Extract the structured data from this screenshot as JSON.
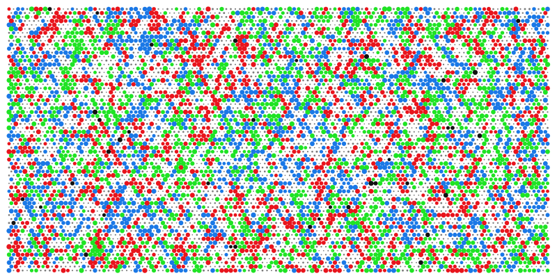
{
  "pattern": {
    "colors": [
      "#e8141c",
      "#1fe324",
      "#1a78e6",
      "#111111"
    ],
    "background": "#ffffff",
    "dot_color": "#7a7a7a"
  }
}
